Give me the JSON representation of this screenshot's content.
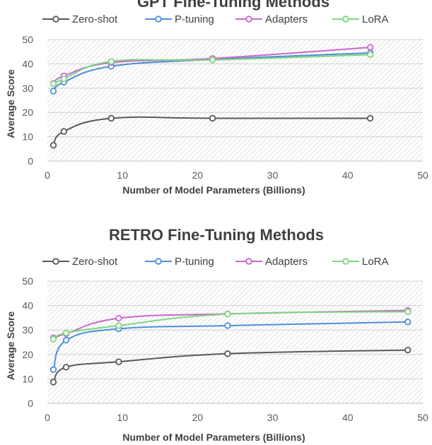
{
  "chart_data": [
    {
      "type": "line",
      "title": "GPT Fine-Tuning Methods",
      "xlabel": "Number of Model Parameters (Billions)",
      "ylabel": "Average Score",
      "xlim": [
        0,
        50
      ],
      "ylim": [
        0,
        50
      ],
      "xticks": [
        0,
        10,
        20,
        30,
        40,
        50
      ],
      "yticks": [
        0,
        10,
        20,
        30,
        40,
        50
      ],
      "legend_position": "top",
      "series": [
        {
          "name": "Zero-shot",
          "color": "#595959",
          "x": [
            0.8,
            2.2,
            8.5,
            22,
            43
          ],
          "y": [
            6.5,
            12.2,
            17.6,
            17.6,
            17.6
          ]
        },
        {
          "name": "P-tuning",
          "color": "#4A90D9",
          "x": [
            0.8,
            2.2,
            8.5,
            22,
            43
          ],
          "y": [
            28.8,
            32.5,
            39,
            41.8,
            44.5
          ]
        },
        {
          "name": "Adapters",
          "color": "#CC66CC",
          "x": [
            0.8,
            2.2,
            8.5,
            22,
            43
          ],
          "y": [
            32,
            35,
            40.5,
            42.2,
            46.8
          ]
        },
        {
          "name": "LoRA",
          "color": "#7ED67E",
          "x": [
            0.8,
            2.2,
            8.5,
            22,
            43
          ],
          "y": [
            31.8,
            33.8,
            41,
            41.6,
            43.8
          ]
        }
      ]
    },
    {
      "type": "line",
      "title": "RETRO Fine-Tuning Methods",
      "xlabel": "Number of Model Parameters (Billions)",
      "ylabel": "Average Score",
      "xlim": [
        0,
        50
      ],
      "ylim": [
        0,
        50
      ],
      "xticks": [
        0,
        10,
        20,
        30,
        40,
        50
      ],
      "yticks": [
        0,
        10,
        20,
        30,
        40,
        50
      ],
      "legend_position": "top",
      "series": [
        {
          "name": "Zero-shot",
          "color": "#595959",
          "x": [
            0.8,
            2.5,
            9.5,
            24,
            48
          ],
          "y": [
            8.7,
            14.8,
            17,
            20.3,
            21.8
          ]
        },
        {
          "name": "P-tuning",
          "color": "#4A90D9",
          "x": [
            0.8,
            2.5,
            9.5,
            24,
            48
          ],
          "y": [
            13.8,
            25.8,
            30.5,
            31.8,
            33.3
          ]
        },
        {
          "name": "Adapters",
          "color": "#CC66CC",
          "x": [
            0.8,
            2.5,
            9.5,
            24,
            48
          ],
          "y": [
            26.8,
            28.5,
            34.8,
            36.6,
            38
          ]
        },
        {
          "name": "LoRA",
          "color": "#7ED67E",
          "x": [
            0.8,
            2.5,
            9.5,
            24,
            48
          ],
          "y": [
            26.3,
            28.8,
            31.8,
            36.5,
            37.5
          ]
        }
      ]
    }
  ]
}
